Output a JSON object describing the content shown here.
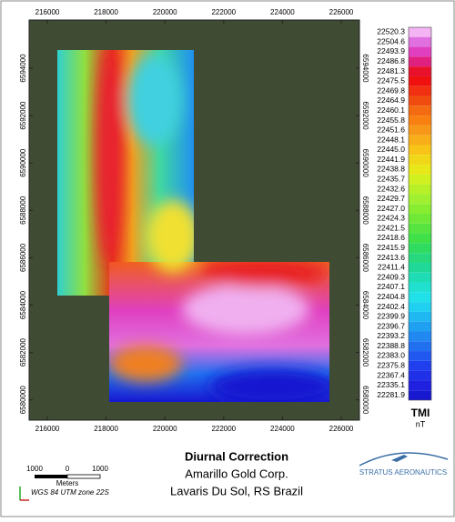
{
  "map": {
    "x_labels": [
      "216000",
      "218000",
      "220000",
      "222000",
      "224000",
      "226000"
    ],
    "y_labels": [
      "6594000",
      "6592000",
      "6590000",
      "6588000",
      "6586000",
      "6584000",
      "6582000",
      "6580000"
    ]
  },
  "legend": {
    "title": "TMI",
    "unit": "nT",
    "entries": [
      {
        "label": "22520.3",
        "color": "#f4b4f4"
      },
      {
        "label": "22504.6",
        "color": "#e070e0"
      },
      {
        "label": "22493.9",
        "color": "#e040c0"
      },
      {
        "label": "22486.8",
        "color": "#e02080"
      },
      {
        "label": "22481.3",
        "color": "#e8102a"
      },
      {
        "label": "22475.5",
        "color": "#f01010"
      },
      {
        "label": "22469.8",
        "color": "#f03010"
      },
      {
        "label": "22464.9",
        "color": "#f04c10"
      },
      {
        "label": "22460.1",
        "color": "#f46a10"
      },
      {
        "label": "22455.8",
        "color": "#f88010"
      },
      {
        "label": "22451.6",
        "color": "#f89818"
      },
      {
        "label": "22448.1",
        "color": "#f8ae18"
      },
      {
        "label": "22445.0",
        "color": "#f8c418"
      },
      {
        "label": "22441.9",
        "color": "#f0d818"
      },
      {
        "label": "22438.8",
        "color": "#e8e818"
      },
      {
        "label": "22435.7",
        "color": "#d0f020"
      },
      {
        "label": "22432.6",
        "color": "#b8f028"
      },
      {
        "label": "22429.7",
        "color": "#a0f030"
      },
      {
        "label": "22427.0",
        "color": "#88ec30"
      },
      {
        "label": "22424.3",
        "color": "#70e838"
      },
      {
        "label": "22421.5",
        "color": "#58e440"
      },
      {
        "label": "22418.6",
        "color": "#40e048"
      },
      {
        "label": "22415.9",
        "color": "#30dc60"
      },
      {
        "label": "22413.6",
        "color": "#28d87c"
      },
      {
        "label": "22411.4",
        "color": "#20d898"
      },
      {
        "label": "22409.3",
        "color": "#20dcb4"
      },
      {
        "label": "22407.1",
        "color": "#20e0d0"
      },
      {
        "label": "22404.8",
        "color": "#20e0e8"
      },
      {
        "label": "22402.4",
        "color": "#20d0f0"
      },
      {
        "label": "22399.9",
        "color": "#20b8f0"
      },
      {
        "label": "22396.7",
        "color": "#20a0f0"
      },
      {
        "label": "22393.2",
        "color": "#2088f0"
      },
      {
        "label": "22388.8",
        "color": "#2070f0"
      },
      {
        "label": "22383.0",
        "color": "#2058f0"
      },
      {
        "label": "22375.8",
        "color": "#2040f0"
      },
      {
        "label": "22367.4",
        "color": "#2030e8"
      },
      {
        "label": "22335.1",
        "color": "#2020e0"
      },
      {
        "label": "22281.9",
        "color": "#1818d0"
      }
    ]
  },
  "footer": {
    "title": "Diurnal Correction",
    "company": "Amarillo Gold Corp.",
    "location": "Lavaris Du Sol, RS Brazil",
    "scale": {
      "left": "1000",
      "zero": "0",
      "right": "1000",
      "unit": "Meters"
    },
    "projection": "WGS 84 UTM zone 22S",
    "logo": "STRATUS AERONAUTICS"
  }
}
